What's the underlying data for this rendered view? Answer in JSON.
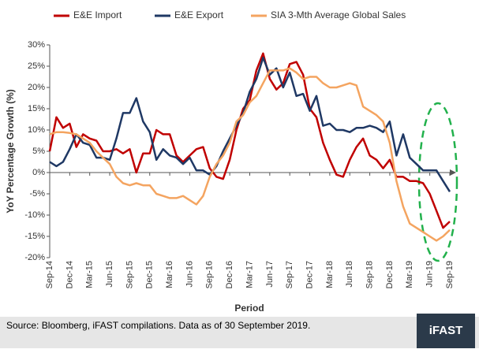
{
  "chart_data": {
    "type": "line",
    "x_label": "Period",
    "y_label": "YoY Percentage Growth (%)",
    "source": "Source: Bloomberg, iFAST compilations. Data as of 30 September 2019.",
    "logo": "iFAST",
    "categories": [
      "Sep-14",
      null,
      null,
      "Dec-14",
      null,
      null,
      "Mar-15",
      null,
      null,
      "Jun-15",
      null,
      null,
      "Sep-15",
      null,
      null,
      "Dec-15",
      null,
      null,
      "Mar-16",
      null,
      null,
      "Jun-16",
      null,
      null,
      "Sep-16",
      null,
      null,
      "Dec-16",
      null,
      null,
      "Mar-17",
      null,
      null,
      "Jun-17",
      null,
      null,
      "Sep-17",
      null,
      null,
      "Dec-17",
      null,
      null,
      "Mar-18",
      null,
      null,
      "Jun-18",
      null,
      null,
      "Sep-18",
      null,
      null,
      "Dec-18",
      null,
      null,
      "Mar-19",
      null,
      null,
      "Jun-19",
      null,
      null,
      "Sep-19"
    ],
    "series": [
      {
        "name": "E&E Import",
        "color": "#c00000",
        "values": [
          5,
          13,
          10.5,
          11.5,
          6,
          9,
          8,
          7.5,
          5,
          5,
          5.5,
          4.5,
          5.5,
          0,
          4.5,
          4.5,
          10,
          9,
          9,
          4,
          2.5,
          4,
          5.5,
          6,
          1,
          -1,
          -1.5,
          3,
          10,
          15,
          17,
          24,
          28,
          22,
          19.5,
          21,
          25.5,
          26,
          23,
          15,
          13,
          7,
          3,
          -0.5,
          -1,
          3,
          6,
          8,
          4,
          3,
          1,
          3,
          -1,
          -1,
          -2,
          -2,
          -2.5,
          -5,
          -9,
          -13,
          -11.5
        ]
      },
      {
        "name": "E&E Export",
        "color": "#1f3864",
        "values": [
          2.5,
          1.5,
          2.5,
          5.5,
          9,
          7,
          6.5,
          3.5,
          3.5,
          3,
          8,
          14,
          14,
          17.5,
          12,
          9.5,
          3,
          5.5,
          4,
          3.5,
          2,
          3.5,
          0.5,
          0.5,
          -0.5,
          1.5,
          5,
          8,
          11,
          14,
          19,
          22,
          27,
          23,
          24.5,
          20,
          23.5,
          18,
          18.5,
          14.5,
          18,
          11,
          11.5,
          10,
          10,
          9.5,
          10.5,
          10.5,
          11,
          10.5,
          9.5,
          12,
          4,
          9,
          3.5,
          2,
          0.5,
          0.5,
          0.5,
          -2,
          -4.5
        ]
      },
      {
        "name": "SIA 3-Mth Average Global Sales",
        "color": "#f4a460",
        "values": [
          9,
          9.5,
          9.5,
          9.3,
          9,
          8,
          7,
          5,
          3.5,
          2,
          -1,
          -2.5,
          -3,
          -2.5,
          -3,
          -3,
          -5,
          -5.5,
          -6,
          -6,
          -5.5,
          -6.5,
          -7.5,
          -5.5,
          -1,
          2,
          4,
          7,
          12,
          13.5,
          16.5,
          18,
          21,
          24,
          24,
          24,
          24.5,
          23.5,
          22,
          22.5,
          22.5,
          21,
          20,
          20,
          20.5,
          21,
          20.5,
          15.5,
          14.5,
          13.5,
          12,
          7,
          -2,
          -8,
          -12,
          -13,
          -14,
          -15,
          -16,
          -15,
          -13.5
        ]
      }
    ],
    "ylim": [
      -20,
      30
    ],
    "yticks": [
      {
        "value": -20,
        "label": "-20%"
      },
      {
        "value": -15,
        "label": "-15%"
      },
      {
        "value": -10,
        "label": "-10%"
      },
      {
        "value": -5,
        "label": "-5%"
      },
      {
        "value": 0,
        "label": "0%"
      },
      {
        "value": 5,
        "label": "5%"
      },
      {
        "value": 10,
        "label": "10%"
      },
      {
        "value": 15,
        "label": "15%"
      },
      {
        "value": 20,
        "label": "20%"
      },
      {
        "value": 25,
        "label": "25%"
      },
      {
        "value": 30,
        "label": "30%"
      }
    ],
    "grid": false
  }
}
